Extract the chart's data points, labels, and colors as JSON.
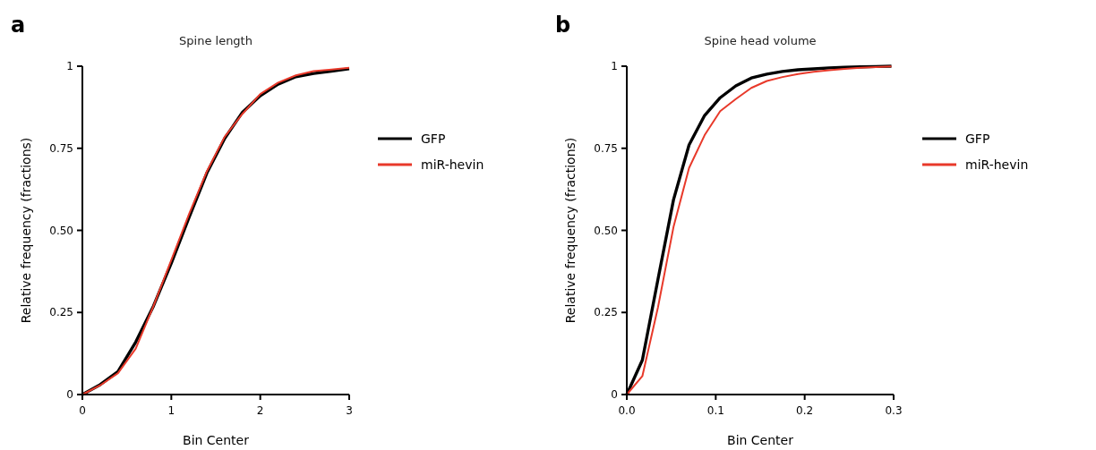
{
  "chart_data": [
    {
      "type": "line",
      "title": "Spine length",
      "xlabel": "Bin Center",
      "ylabel": "Relative frequency (fractions)",
      "annotations": [
        "a"
      ],
      "legend": "right",
      "xlim": [
        0,
        3
      ],
      "xticks": [
        0,
        1,
        2,
        3
      ],
      "ylim": [
        0,
        1
      ],
      "yticks": [
        0,
        0.25,
        {
          "value": 0.5,
          "label": "0.50"
        },
        0.75,
        1
      ],
      "x": [
        0,
        0.2,
        0.4,
        0.6,
        0.8,
        1.0,
        1.2,
        1.4,
        1.6,
        1.8,
        2.0,
        2.2,
        2.4,
        2.6,
        2.8,
        3.0
      ],
      "series": [
        {
          "name": "GFP",
          "color": "#000000",
          "values": [
            0,
            0.03,
            0.07,
            0.16,
            0.27,
            0.4,
            0.54,
            0.675,
            0.78,
            0.86,
            0.91,
            0.945,
            0.968,
            0.978,
            0.985,
            0.992
          ]
        },
        {
          "name": "miR-hevin",
          "color": "#e8392a",
          "values": [
            0,
            0.028,
            0.065,
            0.14,
            0.27,
            0.41,
            0.55,
            0.68,
            0.785,
            0.855,
            0.915,
            0.95,
            0.972,
            0.985,
            0.99,
            0.995
          ]
        }
      ]
    },
    {
      "type": "line",
      "title": "Spine head volume",
      "xlabel": "Bin Center",
      "ylabel": "Relative frequency (fractions)",
      "annotations": [
        "b"
      ],
      "legend": "right",
      "xlim": [
        0,
        0.3
      ],
      "xticks": [
        {
          "value": 0,
          "label": "0.0"
        },
        0.1,
        0.2,
        0.3
      ],
      "ylim": [
        0,
        1
      ],
      "yticks": [
        0,
        0.25,
        {
          "value": 0.5,
          "label": "0.50"
        },
        0.75,
        1
      ],
      "x": [
        0,
        0.0175,
        0.035,
        0.0525,
        0.07,
        0.0875,
        0.105,
        0.1225,
        0.14,
        0.1575,
        0.175,
        0.1925,
        0.21,
        0.2275,
        0.245,
        0.2625,
        0.28,
        0.2975
      ],
      "series": [
        {
          "name": "GFP",
          "color": "#000000",
          "values": [
            0,
            0.105,
            0.35,
            0.593,
            0.76,
            0.85,
            0.904,
            0.94,
            0.964,
            0.976,
            0.984,
            0.989,
            0.992,
            0.995,
            0.997,
            0.998,
            0.999,
            1
          ]
        },
        {
          "name": "miR-hevin",
          "color": "#e8392a",
          "values": [
            0,
            0.056,
            0.265,
            0.51,
            0.69,
            0.79,
            0.863,
            0.9,
            0.934,
            0.955,
            0.967,
            0.976,
            0.983,
            0.988,
            0.992,
            0.995,
            0.997,
            0.999
          ]
        }
      ]
    }
  ]
}
